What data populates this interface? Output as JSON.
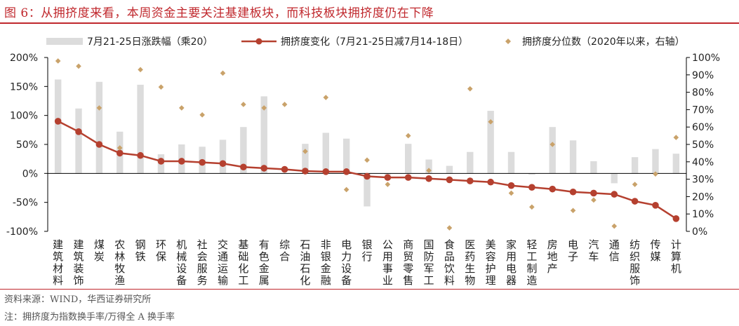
{
  "title": "图 6：从拥挤度来看，本周资金主要关注基建板块，而科技板块拥挤度仍在下降",
  "source": "资料来源：WIND，华西证券研究所",
  "footnote": "注：拥挤度为指数换手率/万得全 A 换手率",
  "colors": {
    "accent": "#c0282d",
    "bar": "#dcdcdc",
    "line": "#b5402f",
    "diamond": "#c9a26a"
  },
  "chart_data": {
    "type": "bar",
    "categories": [
      "建筑材料",
      "建筑装饰",
      "煤炭",
      "农林牧渔",
      "钢铁",
      "环保",
      "机械设备",
      "社会服务",
      "交通运输",
      "基础化工",
      "有色金属",
      "综合",
      "石油石化",
      "非银金融",
      "电力设备",
      "银行",
      "公用事业",
      "商贸零售",
      "国防军工",
      "食品饮料",
      "医药生物",
      "美容护理",
      "家用电器",
      "轻工制造",
      "房地产",
      "电子",
      "汽车",
      "通信",
      "纺织服饰",
      "传媒",
      "计算机"
    ],
    "series": [
      {
        "name": "7月21-25日涨跌幅（乘20）",
        "type": "bar",
        "axis": "left",
        "values": [
          162,
          112,
          158,
          72,
          153,
          33,
          50,
          46,
          58,
          80,
          133,
          0,
          51,
          70,
          60,
          -57,
          -2,
          51,
          24,
          13,
          37,
          108,
          37,
          -2,
          80,
          57,
          21,
          -17,
          28,
          42,
          34
        ]
      },
      {
        "name": "拥挤度变化（7月21-25日减7月14-18日）",
        "type": "line",
        "axis": "left",
        "values": [
          90,
          72,
          50,
          35,
          31,
          21,
          21,
          19,
          17,
          11,
          9,
          7,
          4,
          3,
          3,
          -5,
          -7,
          -7,
          -9,
          -11,
          -13,
          -15,
          -21,
          -24,
          -27,
          -32,
          -34,
          -36,
          -48,
          -55,
          -78
        ]
      },
      {
        "name": "拥挤度分位数（2020年以来，右轴）",
        "type": "scatter",
        "axis": "right",
        "values": [
          98,
          95,
          71,
          48,
          93,
          83,
          71,
          67,
          91,
          73,
          71,
          73,
          46,
          77,
          24,
          41,
          27,
          55,
          35,
          2,
          82,
          63,
          22,
          14,
          50,
          12,
          18,
          3,
          27,
          33,
          54
        ]
      }
    ],
    "ylim": [
      -100,
      200
    ],
    "yticks": [
      "200%",
      "150%",
      "100%",
      "50%",
      "0%",
      "-50%",
      "-100%"
    ],
    "ylim_right": [
      0,
      100
    ],
    "yticks_right": [
      "100%",
      "90%",
      "80%",
      "70%",
      "60%",
      "50%",
      "40%",
      "30%",
      "20%",
      "10%",
      "0%"
    ],
    "legend_position": "top",
    "grid": false
  }
}
